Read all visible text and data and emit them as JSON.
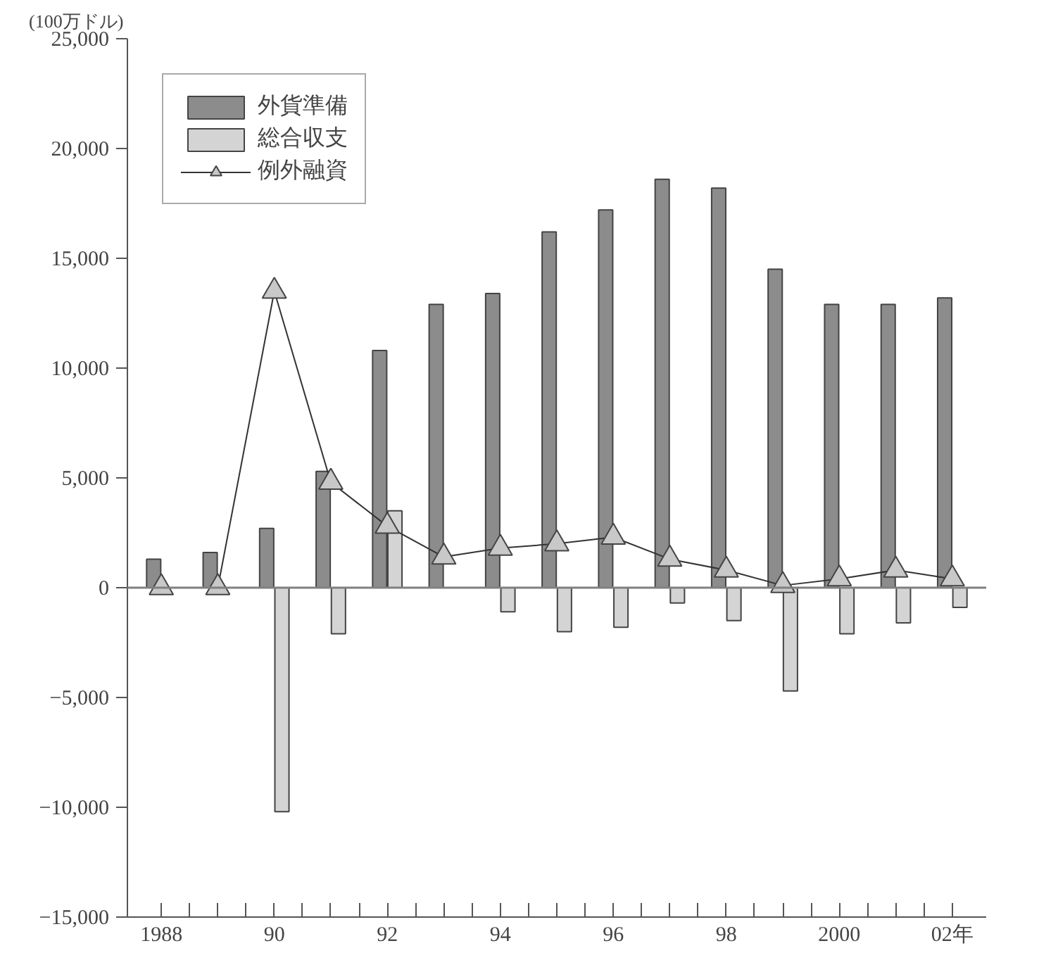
{
  "chart_data": {
    "type": "bar",
    "ylabel": "(100万ドル)",
    "categories": [
      "1988",
      null,
      "90",
      null,
      "92",
      null,
      "94",
      null,
      "96",
      null,
      "98",
      null,
      "2000",
      null,
      "02年"
    ],
    "series": [
      {
        "name": "外貨準備",
        "color": "#8c8c8c",
        "values": [
          1300,
          1600,
          2700,
          5300,
          10800,
          12900,
          13400,
          16200,
          17200,
          18600,
          18200,
          14500,
          12900,
          12900,
          13200
        ]
      },
      {
        "name": "総合収支",
        "color": "#d4d4d4",
        "values": [
          null,
          null,
          -10200,
          -2100,
          3500,
          null,
          -1100,
          -2000,
          -1800,
          -700,
          -1500,
          -4700,
          -2100,
          -1600,
          -900
        ]
      },
      {
        "name": "例外融資",
        "type": "line",
        "color": "#c8c8c8",
        "marker": "triangle",
        "values": [
          0,
          0,
          13500,
          4800,
          2800,
          1400,
          1800,
          2000,
          2300,
          1300,
          800,
          100,
          400,
          800,
          400
        ]
      }
    ],
    "ylim": [
      -15000,
      25000
    ],
    "yticks": [
      {
        "value": -15000,
        "label": "−15,000"
      },
      {
        "value": -10000,
        "label": "−10,000"
      },
      {
        "value": -5000,
        "label": "−5,000"
      },
      {
        "value": 0,
        "label": "0"
      },
      {
        "value": 5000,
        "label": "5,000"
      },
      {
        "value": 10000,
        "label": "10,000"
      },
      {
        "value": 15000,
        "label": "15,000"
      },
      {
        "value": 20000,
        "label": "20,000"
      },
      {
        "value": 25000,
        "label": "25,000"
      }
    ],
    "ref_lines": [
      {
        "axis": "y",
        "value": 0,
        "color": "#808080"
      }
    ],
    "grid": false,
    "legend": "top left"
  }
}
